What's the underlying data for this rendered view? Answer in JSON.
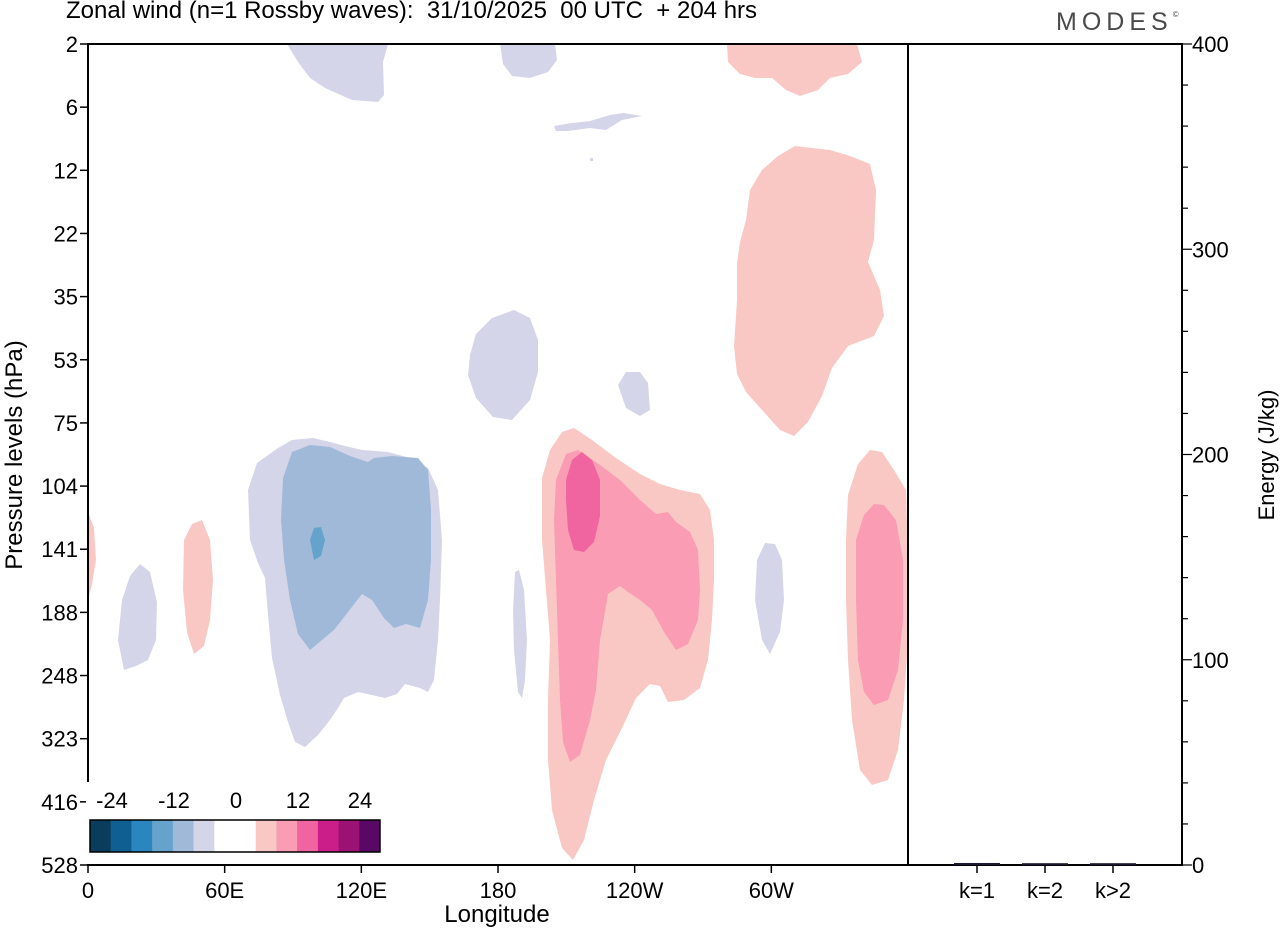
{
  "header": {
    "title": "Zonal wind (n=1 Rossby waves):  31/10/2025  00 UTC  + 204 hrs",
    "logo": "MODES",
    "logo_mark": "©"
  },
  "chart_data": [
    {
      "type": "heatmap",
      "title": "Zonal wind (n=1 Rossby waves):  31/10/2025  00 UTC  + 204 hrs",
      "xlabel": "Longitude",
      "ylabel": "Pressure levels (hPa)",
      "x_ticks": [
        "0",
        "60E",
        "120E",
        "180",
        "120W",
        "60W"
      ],
      "x_tick_values": [
        0,
        60,
        120,
        180,
        240,
        300
      ],
      "xlim": [
        0,
        360
      ],
      "y_ticks": [
        "2",
        "6",
        "12",
        "22",
        "35",
        "53",
        "75",
        "104",
        "141",
        "188",
        "248",
        "323",
        "416",
        "528"
      ],
      "y_scale": "model levels (pressure labels, top = 2 hPa)",
      "colorbar": {
        "tick_labels": [
          "-24",
          "-12",
          "0",
          "12",
          "24"
        ],
        "colors": [
          "#0a3d5c",
          "#0f5f92",
          "#2b85bf",
          "#66a3cc",
          "#a0b9d9",
          "#d4d5e8",
          "#ffffff",
          "#ffffff",
          "#f9c8c4",
          "#f99cb4",
          "#f064a0",
          "#cc1e88",
          "#991274",
          "#5a0866"
        ]
      },
      "features": [
        {
          "sign": "negative",
          "level": "weak",
          "center_lon": 103,
          "center_p": "141",
          "note": "broad easterly anomaly"
        },
        {
          "sign": "negative",
          "level": "moderate",
          "center_lon": 100,
          "center_p": "141"
        },
        {
          "sign": "negative",
          "level": "strong",
          "center_lon": 101,
          "center_p": "141"
        },
        {
          "sign": "positive",
          "level": "weak",
          "center_lon": 220,
          "center_p": "188",
          "note": "westerly anomaly"
        },
        {
          "sign": "positive",
          "level": "moderate",
          "center_lon": 222,
          "center_p": "188"
        },
        {
          "sign": "positive",
          "level": "strong",
          "center_lon": 212,
          "center_p": "141"
        },
        {
          "sign": "positive",
          "level": "weak",
          "center_lon": 345,
          "center_p": "188"
        },
        {
          "sign": "positive",
          "level": "moderate",
          "center_lon": 347,
          "center_p": "188"
        },
        {
          "sign": "positive",
          "level": "weak",
          "center_lon": 322,
          "center_p": "35"
        },
        {
          "sign": "negative",
          "level": "weak",
          "center_lon": 183,
          "center_p": "53"
        }
      ]
    },
    {
      "type": "bar",
      "categories": [
        "k=1",
        "k=2",
        "k>2"
      ],
      "values": [
        0.5,
        0.4,
        0.4
      ],
      "ylabel": "Energy (J/kg)",
      "y_ticks": [
        "0",
        "100",
        "200",
        "300",
        "400"
      ],
      "ylim": [
        0,
        400
      ]
    }
  ]
}
